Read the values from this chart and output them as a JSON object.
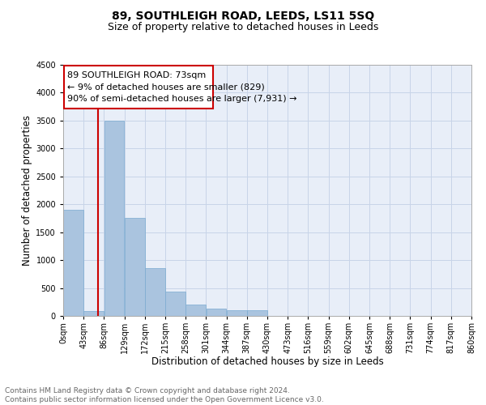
{
  "title": "89, SOUTHLEIGH ROAD, LEEDS, LS11 5SQ",
  "subtitle": "Size of property relative to detached houses in Leeds",
  "xlabel": "Distribution of detached houses by size in Leeds",
  "ylabel": "Number of detached properties",
  "annotation_line1": "89 SOUTHLEIGH ROAD: 73sqm",
  "annotation_line2": "← 9% of detached houses are smaller (829)",
  "annotation_line3": "90% of semi-detached houses are larger (7,931) →",
  "footer_line1": "Contains HM Land Registry data © Crown copyright and database right 2024.",
  "footer_line2": "Contains public sector information licensed under the Open Government Licence v3.0.",
  "property_sqm": 73,
  "bin_edges": [
    0,
    43,
    86,
    129,
    172,
    215,
    258,
    301,
    344,
    387,
    430,
    473,
    516,
    559,
    602,
    645,
    688,
    731,
    774,
    817,
    860
  ],
  "bin_labels": [
    "0sqm",
    "43sqm",
    "86sqm",
    "129sqm",
    "172sqm",
    "215sqm",
    "258sqm",
    "301sqm",
    "344sqm",
    "387sqm",
    "430sqm",
    "473sqm",
    "516sqm",
    "559sqm",
    "602sqm",
    "645sqm",
    "688sqm",
    "731sqm",
    "774sqm",
    "817sqm",
    "860sqm"
  ],
  "bar_heights": [
    1900,
    80,
    3500,
    1750,
    850,
    430,
    200,
    130,
    100,
    100,
    0,
    0,
    0,
    0,
    0,
    0,
    0,
    0,
    0,
    0
  ],
  "bar_color": "#aac4df",
  "bar_edge_color": "#7aaad0",
  "highlight_color": "#cc0000",
  "ylim": [
    0,
    4500
  ],
  "yticks": [
    0,
    500,
    1000,
    1500,
    2000,
    2500,
    3000,
    3500,
    4000,
    4500
  ],
  "grid_color": "#c8d4e8",
  "background_color": "#e8eef8",
  "box_color": "#cc0000",
  "title_fontsize": 10,
  "subtitle_fontsize": 9,
  "axis_label_fontsize": 8.5,
  "tick_fontsize": 7,
  "annotation_fontsize": 8,
  "footer_fontsize": 6.5
}
